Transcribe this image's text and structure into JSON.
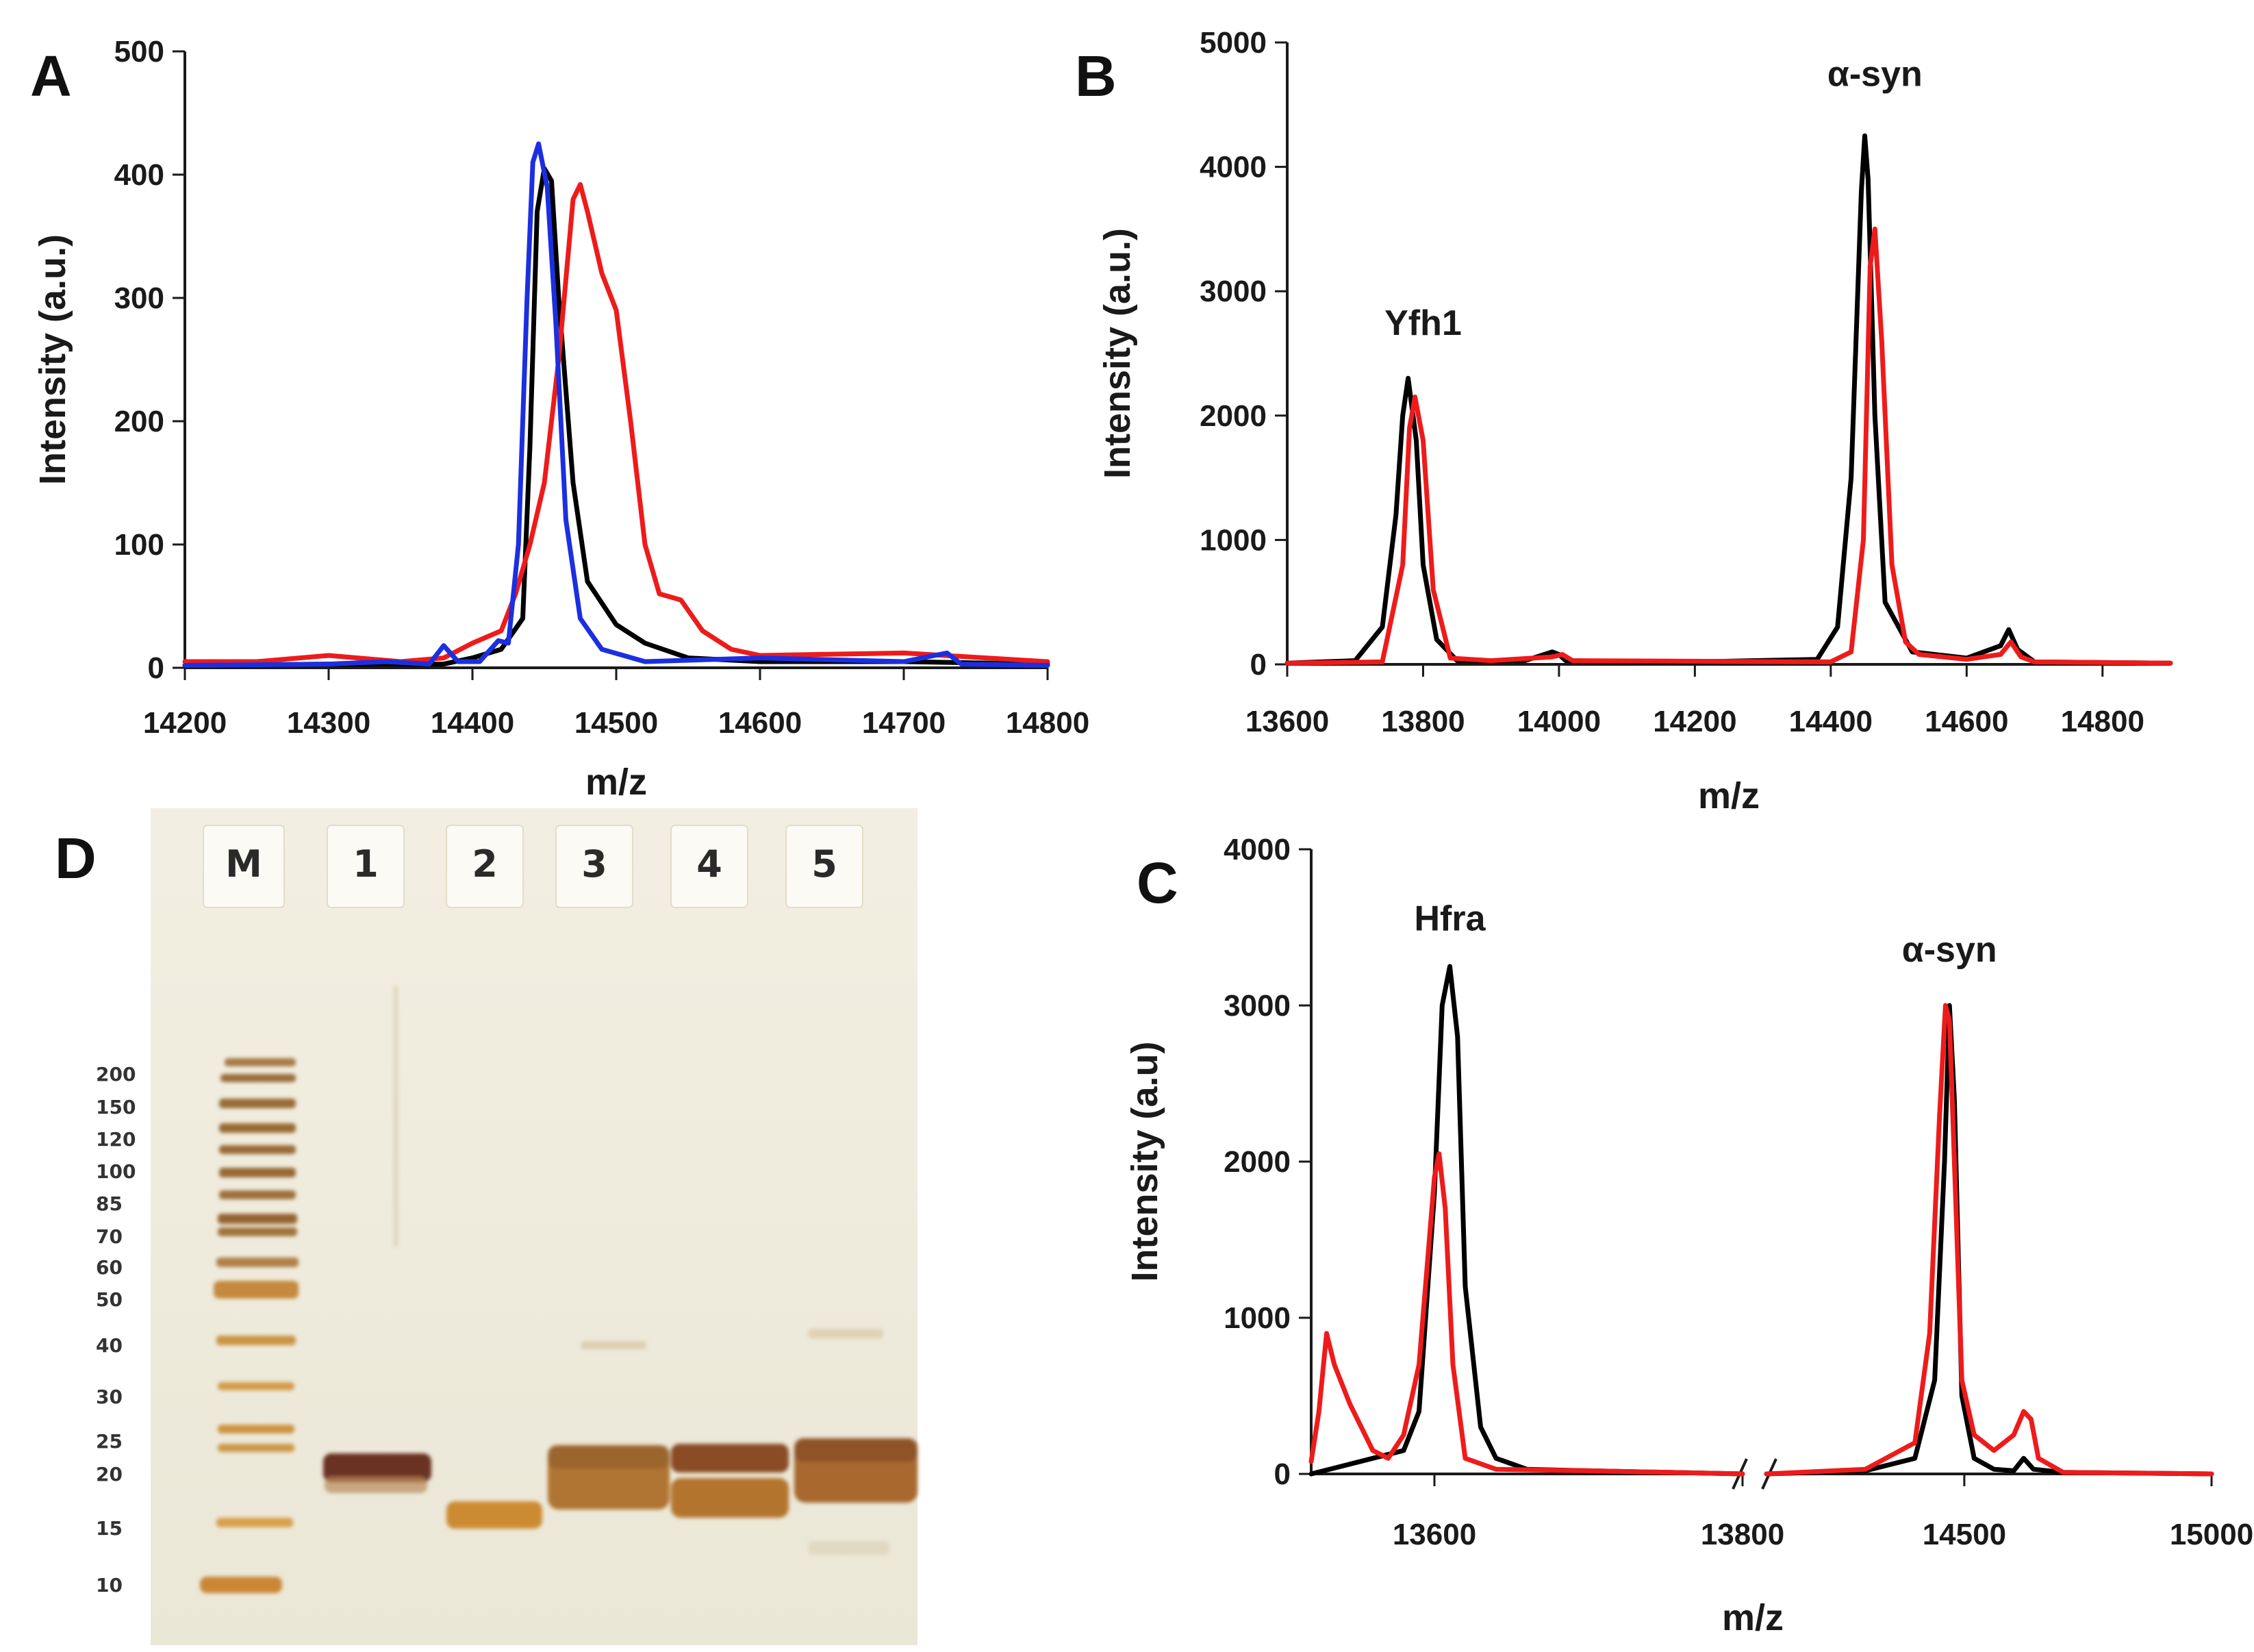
{
  "chart_data": [
    {
      "id": "A",
      "type": "line",
      "panel_label": "A",
      "xlabel": "m/z",
      "ylabel": "Intensity (a.u.)",
      "xlim": [
        14200,
        14800
      ],
      "ylim": [
        0,
        500
      ],
      "xticks": [
        14200,
        14300,
        14400,
        14500,
        14600,
        14700,
        14800
      ],
      "yticks": [
        0,
        100,
        200,
        300,
        400,
        500
      ],
      "xtick_labels": [
        "14200",
        "14300",
        "14400",
        "14500",
        "14600",
        "14700",
        "14800"
      ],
      "ytick_labels": [
        "0",
        "100",
        "200",
        "300",
        "400",
        "500"
      ],
      "series": [
        {
          "name": "black",
          "color": "#000000",
          "x": [
            14200,
            14300,
            14380,
            14400,
            14420,
            14435,
            14440,
            14445,
            14450,
            14455,
            14460,
            14470,
            14480,
            14500,
            14520,
            14550,
            14600,
            14700,
            14800
          ],
          "y": [
            2,
            3,
            3,
            8,
            15,
            40,
            180,
            370,
            405,
            395,
            300,
            150,
            70,
            35,
            20,
            8,
            5,
            5,
            3
          ]
        },
        {
          "name": "red",
          "color": "#ee1b1b",
          "x": [
            14200,
            14250,
            14300,
            14350,
            14380,
            14400,
            14420,
            14430,
            14440,
            14450,
            14460,
            14470,
            14475,
            14480,
            14490,
            14500,
            14510,
            14520,
            14530,
            14545,
            14560,
            14580,
            14600,
            14700,
            14800
          ],
          "y": [
            5,
            5,
            10,
            5,
            8,
            20,
            30,
            60,
            100,
            150,
            250,
            380,
            392,
            370,
            320,
            290,
            200,
            100,
            60,
            55,
            30,
            15,
            10,
            12,
            5
          ]
        },
        {
          "name": "blue",
          "color": "#1c2fe0",
          "x": [
            14200,
            14300,
            14340,
            14370,
            14380,
            14390,
            14405,
            14418,
            14425,
            14432,
            14438,
            14442,
            14446,
            14452,
            14458,
            14465,
            14475,
            14490,
            14520,
            14600,
            14700,
            14730,
            14740,
            14800
          ],
          "y": [
            2,
            3,
            5,
            3,
            18,
            5,
            5,
            22,
            20,
            100,
            300,
            410,
            425,
            390,
            280,
            120,
            40,
            15,
            5,
            8,
            5,
            12,
            3,
            2
          ]
        }
      ]
    },
    {
      "id": "B",
      "type": "line",
      "panel_label": "B",
      "xlabel": "m/z",
      "ylabel": "Intensity (a.u.)",
      "xlim": [
        13600,
        14900
      ],
      "ylim": [
        0,
        5000
      ],
      "xticks": [
        13600,
        13800,
        14000,
        14200,
        14400,
        14600,
        14800
      ],
      "yticks": [
        0,
        1000,
        2000,
        3000,
        4000,
        5000
      ],
      "xtick_labels": [
        "13600",
        "13800",
        "14000",
        "14200",
        "14400",
        "14600",
        "14800"
      ],
      "ytick_labels": [
        "0",
        "1000",
        "2000",
        "3000",
        "4000",
        "5000"
      ],
      "annotations": [
        {
          "text": "Yfh1",
          "x": 13800,
          "y": 2650
        },
        {
          "text": "α-syn",
          "x": 14465,
          "y": 4650
        }
      ],
      "series": [
        {
          "name": "black",
          "color": "#000000",
          "x": [
            13600,
            13700,
            13740,
            13760,
            13770,
            13778,
            13790,
            13800,
            13820,
            13850,
            13950,
            13990,
            14000,
            14010,
            14200,
            14380,
            14410,
            14430,
            14445,
            14450,
            14455,
            14465,
            14480,
            14520,
            14600,
            14650,
            14662,
            14675,
            14700,
            14900
          ],
          "y": [
            10,
            30,
            300,
            1200,
            2000,
            2300,
            1800,
            800,
            200,
            30,
            30,
            100,
            80,
            30,
            20,
            40,
            300,
            1500,
            3800,
            4250,
            3900,
            2000,
            500,
            100,
            50,
            150,
            280,
            120,
            20,
            10
          ]
        },
        {
          "name": "red",
          "color": "#ee1b1b",
          "x": [
            13600,
            13740,
            13770,
            13780,
            13788,
            13800,
            13815,
            13840,
            13900,
            13990,
            14005,
            14020,
            14400,
            14430,
            14448,
            14458,
            14465,
            14475,
            14490,
            14510,
            14530,
            14600,
            14650,
            14665,
            14680,
            14700,
            14900
          ],
          "y": [
            10,
            20,
            800,
            1900,
            2150,
            1800,
            600,
            50,
            30,
            60,
            80,
            30,
            20,
            100,
            1000,
            3200,
            3500,
            2600,
            800,
            180,
            80,
            40,
            80,
            180,
            60,
            20,
            10
          ]
        }
      ]
    },
    {
      "id": "C",
      "type": "line",
      "panel_label": "C",
      "xlabel": "m/z",
      "ylabel": "Intensity (a.u)",
      "ylim": [
        0,
        4000
      ],
      "axis_break": true,
      "xticks": [
        13600,
        13800,
        14500,
        15000
      ],
      "yticks": [
        0,
        1000,
        2000,
        3000,
        4000
      ],
      "xtick_labels": [
        "13600",
        "13800",
        "14500",
        "15000"
      ],
      "ytick_labels": [
        "0",
        "1000",
        "2000",
        "3000",
        "4000"
      ],
      "annotations": [
        {
          "text": "Hfra",
          "x": 13610,
          "y": 3480
        },
        {
          "text": "α-syn",
          "x": 14470,
          "y": 3280
        }
      ],
      "series": [
        {
          "name": "black",
          "color": "#000000",
          "x": [
            13520,
            13540,
            13560,
            13580,
            13590,
            13600,
            13605,
            13610,
            13615,
            13620,
            13630,
            13640,
            13660,
            13700,
            13800
          ],
          "y": [
            0,
            50,
            100,
            150,
            400,
            1800,
            3000,
            3250,
            2800,
            1200,
            300,
            100,
            30,
            20,
            0
          ]
        },
        {
          "name": "black",
          "color": "#000000",
          "x": [
            14100,
            14300,
            14400,
            14440,
            14460,
            14470,
            14480,
            14495,
            14520,
            14560,
            14600,
            14620,
            14640,
            14700,
            15000
          ],
          "y": [
            0,
            20,
            100,
            600,
            2000,
            3000,
            2400,
            500,
            100,
            30,
            20,
            100,
            30,
            10,
            0
          ]
        },
        {
          "name": "red",
          "color": "#ee1b1b",
          "x": [
            13520,
            13525,
            13530,
            13535,
            13545,
            13560,
            13570,
            13580,
            13590,
            13595,
            13600,
            13603,
            13607,
            13612,
            13620,
            13640,
            13700,
            13800
          ],
          "y": [
            80,
            400,
            900,
            700,
            450,
            150,
            100,
            250,
            700,
            1300,
            1900,
            2050,
            1700,
            700,
            100,
            30,
            20,
            0
          ]
        },
        {
          "name": "red",
          "color": "#ee1b1b",
          "x": [
            14100,
            14300,
            14400,
            14430,
            14450,
            14462,
            14470,
            14480,
            14495,
            14520,
            14560,
            14600,
            14620,
            14635,
            14650,
            14700,
            15000
          ],
          "y": [
            0,
            30,
            200,
            900,
            2300,
            3000,
            2900,
            2000,
            600,
            250,
            150,
            250,
            400,
            350,
            100,
            10,
            0
          ]
        }
      ]
    }
  ],
  "gel": {
    "panel_label": "D",
    "lanes": [
      "M",
      "1",
      "2",
      "3",
      "4",
      "5"
    ],
    "mw_markers": [
      "200",
      "150",
      "120",
      "100",
      "85",
      "70",
      "60",
      "50",
      "40",
      "30",
      "25",
      "20",
      "15",
      "10"
    ]
  }
}
